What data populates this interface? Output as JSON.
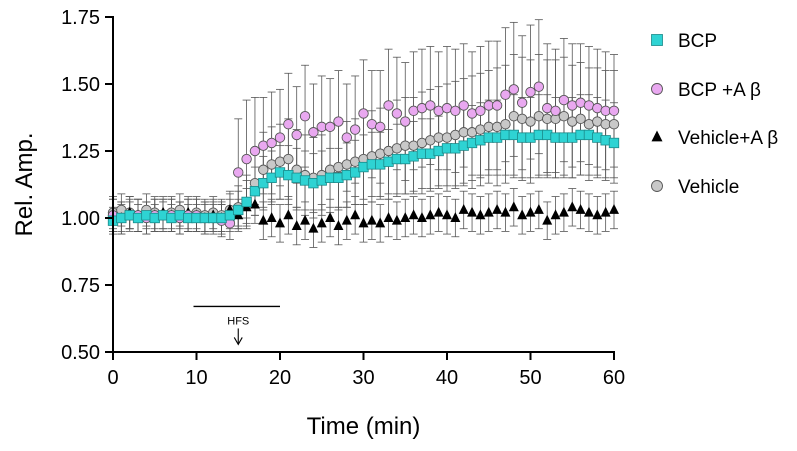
{
  "chart_data": {
    "type": "scatter",
    "xlabel": "Time (min)",
    "ylabel": "Rel. Amp.",
    "xlim": [
      0,
      60
    ],
    "ylim": [
      0.5,
      1.75
    ],
    "xticks": [
      0,
      10,
      20,
      30,
      40,
      50,
      60
    ],
    "yticks": [
      "0.50",
      "0.75",
      "1.00",
      "1.25",
      "1.50",
      "1.75"
    ],
    "grid": false,
    "legend_position": "right",
    "annotation": {
      "label": "HFS",
      "bar_x": [
        10,
        20
      ],
      "bar_y": 0.67,
      "arrow_x": 15
    },
    "series": [
      {
        "name": "BCP",
        "marker": "square",
        "color": "#2ED3D3",
        "x": [
          0,
          1,
          2,
          3,
          4,
          5,
          6,
          7,
          8,
          9,
          10,
          11,
          12,
          13,
          14,
          15,
          16,
          17,
          18,
          19,
          20,
          21,
          22,
          23,
          24,
          25,
          26,
          27,
          28,
          29,
          30,
          31,
          32,
          33,
          34,
          35,
          36,
          37,
          38,
          39,
          40,
          41,
          42,
          43,
          44,
          45,
          46,
          47,
          48,
          49,
          50,
          51,
          52,
          53,
          54,
          55,
          56,
          57,
          58,
          59,
          60
        ],
        "y": [
          0.99,
          1.0,
          1.01,
          1.0,
          1.01,
          1.0,
          1.01,
          1.0,
          1.01,
          1.0,
          1.0,
          1.0,
          1.0,
          1.0,
          1.01,
          1.03,
          1.06,
          1.1,
          1.13,
          1.15,
          1.17,
          1.16,
          1.15,
          1.14,
          1.13,
          1.14,
          1.15,
          1.15,
          1.16,
          1.17,
          1.19,
          1.2,
          1.2,
          1.21,
          1.22,
          1.22,
          1.23,
          1.24,
          1.24,
          1.25,
          1.26,
          1.26,
          1.27,
          1.28,
          1.29,
          1.3,
          1.3,
          1.31,
          1.31,
          1.3,
          1.3,
          1.31,
          1.31,
          1.3,
          1.3,
          1.3,
          1.31,
          1.31,
          1.3,
          1.29,
          1.28
        ],
        "err": [
          0.05,
          0.05,
          0.05,
          0.05,
          0.05,
          0.05,
          0.05,
          0.05,
          0.05,
          0.05,
          0.05,
          0.05,
          0.05,
          0.05,
          0.06,
          0.07,
          0.08,
          0.09,
          0.1,
          0.1,
          0.1,
          0.11,
          0.11,
          0.11,
          0.11,
          0.11,
          0.11,
          0.11,
          0.12,
          0.12,
          0.12,
          0.12,
          0.12,
          0.12,
          0.13,
          0.13,
          0.13,
          0.13,
          0.13,
          0.13,
          0.14,
          0.14,
          0.14,
          0.14,
          0.14,
          0.14,
          0.14,
          0.15,
          0.15,
          0.15,
          0.15,
          0.15,
          0.15,
          0.15,
          0.15,
          0.15,
          0.15,
          0.15,
          0.15,
          0.15,
          0.15
        ]
      },
      {
        "name": "BCP +A β",
        "marker": "circle",
        "color": "#E9A8F0",
        "x": [
          0,
          1,
          2,
          3,
          4,
          5,
          6,
          7,
          8,
          9,
          10,
          11,
          12,
          13,
          14,
          15,
          16,
          17,
          18,
          19,
          20,
          21,
          22,
          23,
          24,
          25,
          26,
          27,
          28,
          29,
          30,
          31,
          32,
          33,
          34,
          35,
          36,
          37,
          38,
          39,
          40,
          41,
          42,
          43,
          44,
          45,
          46,
          47,
          48,
          49,
          50,
          51,
          52,
          53,
          54,
          55,
          56,
          57,
          58,
          59,
          60
        ],
        "y": [
          1.01,
          1.0,
          1.01,
          1.01,
          1.0,
          1.01,
          1.01,
          1.01,
          1.0,
          1.01,
          1.01,
          1.0,
          1.0,
          0.99,
          0.98,
          1.17,
          1.22,
          1.25,
          1.27,
          1.28,
          1.3,
          1.35,
          1.31,
          1.38,
          1.32,
          1.34,
          1.34,
          1.36,
          1.3,
          1.33,
          1.39,
          1.35,
          1.34,
          1.42,
          1.39,
          1.36,
          1.4,
          1.41,
          1.42,
          1.4,
          1.41,
          1.4,
          1.42,
          1.39,
          1.4,
          1.42,
          1.42,
          1.46,
          1.48,
          1.43,
          1.47,
          1.49,
          1.41,
          1.4,
          1.44,
          1.42,
          1.43,
          1.42,
          1.41,
          1.4,
          1.4
        ],
        "err": [
          0.06,
          0.06,
          0.06,
          0.06,
          0.06,
          0.06,
          0.06,
          0.06,
          0.06,
          0.06,
          0.06,
          0.06,
          0.06,
          0.06,
          0.06,
          0.2,
          0.22,
          0.2,
          0.18,
          0.19,
          0.18,
          0.19,
          0.18,
          0.19,
          0.18,
          0.19,
          0.18,
          0.19,
          0.2,
          0.2,
          0.2,
          0.2,
          0.21,
          0.21,
          0.21,
          0.22,
          0.22,
          0.22,
          0.22,
          0.22,
          0.23,
          0.23,
          0.23,
          0.23,
          0.24,
          0.24,
          0.24,
          0.25,
          0.25,
          0.25,
          0.25,
          0.25,
          0.24,
          0.23,
          0.23,
          0.23,
          0.22,
          0.22,
          0.22,
          0.22,
          0.21
        ]
      },
      {
        "name": "Vehicle+A β",
        "marker": "triangle",
        "color": "#000000",
        "x": [
          0,
          1,
          2,
          3,
          4,
          5,
          6,
          7,
          8,
          9,
          10,
          11,
          12,
          13,
          14,
          15,
          16,
          17,
          18,
          19,
          20,
          21,
          22,
          23,
          24,
          25,
          26,
          27,
          28,
          29,
          30,
          31,
          32,
          33,
          34,
          35,
          36,
          37,
          38,
          39,
          40,
          41,
          42,
          43,
          44,
          45,
          46,
          47,
          48,
          49,
          50,
          51,
          52,
          53,
          54,
          55,
          56,
          57,
          58,
          59,
          60
        ],
        "y": [
          1.01,
          1.0,
          1.02,
          1.01,
          1.0,
          1.01,
          1.02,
          1.01,
          1.0,
          1.02,
          1.01,
          1.0,
          1.01,
          1.0,
          1.03,
          1.01,
          1.04,
          1.05,
          0.99,
          1.0,
          0.98,
          1.01,
          0.97,
          0.99,
          0.96,
          0.98,
          1.0,
          0.97,
          0.99,
          1.01,
          0.98,
          0.99,
          0.98,
          1.0,
          0.99,
          1.0,
          1.01,
          1.0,
          1.01,
          1.02,
          1.01,
          1.0,
          1.03,
          1.02,
          1.01,
          1.02,
          1.03,
          1.02,
          1.04,
          1.01,
          1.02,
          1.03,
          0.99,
          1.01,
          1.02,
          1.04,
          1.03,
          1.02,
          1.01,
          1.02,
          1.03
        ],
        "err": [
          0.06,
          0.06,
          0.06,
          0.06,
          0.06,
          0.06,
          0.06,
          0.06,
          0.06,
          0.06,
          0.06,
          0.06,
          0.06,
          0.06,
          0.06,
          0.06,
          0.07,
          0.07,
          0.07,
          0.07,
          0.07,
          0.07,
          0.07,
          0.07,
          0.07,
          0.07,
          0.07,
          0.07,
          0.07,
          0.07,
          0.07,
          0.07,
          0.07,
          0.07,
          0.07,
          0.07,
          0.07,
          0.07,
          0.07,
          0.07,
          0.07,
          0.07,
          0.07,
          0.07,
          0.07,
          0.07,
          0.07,
          0.07,
          0.07,
          0.07,
          0.07,
          0.07,
          0.07,
          0.07,
          0.07,
          0.07,
          0.07,
          0.07,
          0.07,
          0.07,
          0.07
        ]
      },
      {
        "name": "Vehicle",
        "marker": "circle",
        "color": "#C8C8C8",
        "x": [
          0,
          1,
          2,
          3,
          4,
          5,
          6,
          7,
          8,
          9,
          10,
          11,
          12,
          13,
          14,
          15,
          16,
          17,
          18,
          19,
          20,
          21,
          22,
          23,
          24,
          25,
          26,
          27,
          28,
          29,
          30,
          31,
          32,
          33,
          34,
          35,
          36,
          37,
          38,
          39,
          40,
          41,
          42,
          43,
          44,
          45,
          46,
          47,
          48,
          49,
          50,
          51,
          52,
          53,
          54,
          55,
          56,
          57,
          58,
          59,
          60
        ],
        "y": [
          1.02,
          1.03,
          1.02,
          1.01,
          1.03,
          1.02,
          1.01,
          1.02,
          1.03,
          1.01,
          1.02,
          1.01,
          1.02,
          1.01,
          1.03,
          1.04,
          1.06,
          1.13,
          1.18,
          1.2,
          1.21,
          1.22,
          1.18,
          1.16,
          1.15,
          1.16,
          1.18,
          1.19,
          1.2,
          1.21,
          1.22,
          1.23,
          1.24,
          1.25,
          1.26,
          1.27,
          1.27,
          1.28,
          1.29,
          1.3,
          1.3,
          1.31,
          1.32,
          1.32,
          1.33,
          1.34,
          1.34,
          1.35,
          1.38,
          1.37,
          1.36,
          1.38,
          1.37,
          1.37,
          1.38,
          1.36,
          1.37,
          1.35,
          1.36,
          1.35,
          1.35
        ],
        "err": [
          0.06,
          0.06,
          0.06,
          0.06,
          0.06,
          0.06,
          0.06,
          0.06,
          0.06,
          0.06,
          0.06,
          0.06,
          0.06,
          0.06,
          0.07,
          0.08,
          0.1,
          0.12,
          0.14,
          0.14,
          0.14,
          0.15,
          0.15,
          0.15,
          0.15,
          0.15,
          0.16,
          0.16,
          0.16,
          0.16,
          0.17,
          0.17,
          0.17,
          0.18,
          0.18,
          0.18,
          0.18,
          0.19,
          0.19,
          0.19,
          0.2,
          0.2,
          0.2,
          0.21,
          0.21,
          0.21,
          0.22,
          0.22,
          0.23,
          0.23,
          0.23,
          0.23,
          0.22,
          0.22,
          0.22,
          0.21,
          0.21,
          0.21,
          0.2,
          0.2,
          0.2
        ]
      }
    ]
  }
}
